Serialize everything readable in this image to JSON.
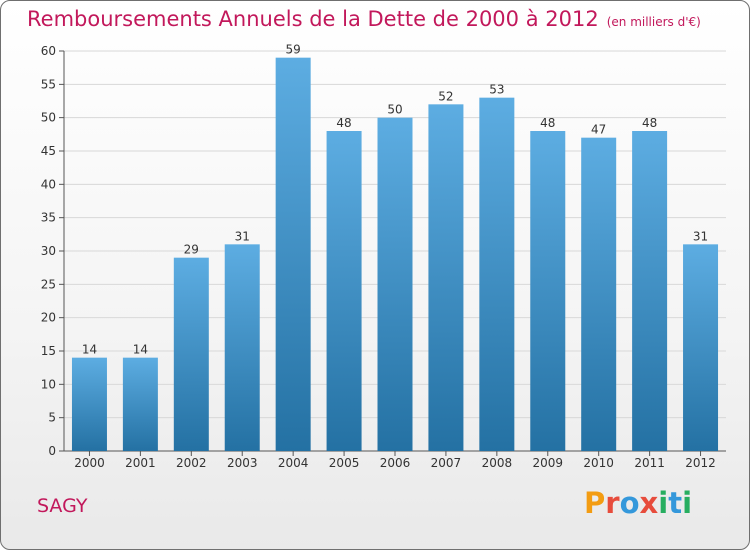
{
  "title": "Remboursements Annuels de la Dette de 2000 à 2012",
  "unit_note": "(en milliers d'€)",
  "commune": "SAGY",
  "logo": {
    "letters": [
      "P",
      "r",
      "o",
      "x",
      "i",
      "t",
      "i"
    ],
    "colors": [
      "#f39c12",
      "#e74c3c",
      "#3498db",
      "#e74c3c",
      "#27ae60",
      "#3498db",
      "#27ae60"
    ]
  },
  "colors": {
    "bar_top": "#5dade2",
    "bar_bottom": "#2471a3",
    "title": "#c2185b"
  },
  "chart_data": {
    "type": "bar",
    "categories": [
      "2000",
      "2001",
      "2002",
      "2003",
      "2004",
      "2005",
      "2006",
      "2007",
      "2008",
      "2009",
      "2010",
      "2011",
      "2012"
    ],
    "values": [
      14,
      14,
      29,
      31,
      59,
      48,
      50,
      52,
      53,
      48,
      47,
      48,
      31
    ],
    "title": "Remboursements Annuels de la Dette de 2000 à 2012",
    "ylim": [
      0,
      60
    ],
    "yticks": [
      0,
      5,
      10,
      15,
      20,
      25,
      30,
      35,
      40,
      45,
      50,
      55,
      60
    ],
    "grid": true
  }
}
